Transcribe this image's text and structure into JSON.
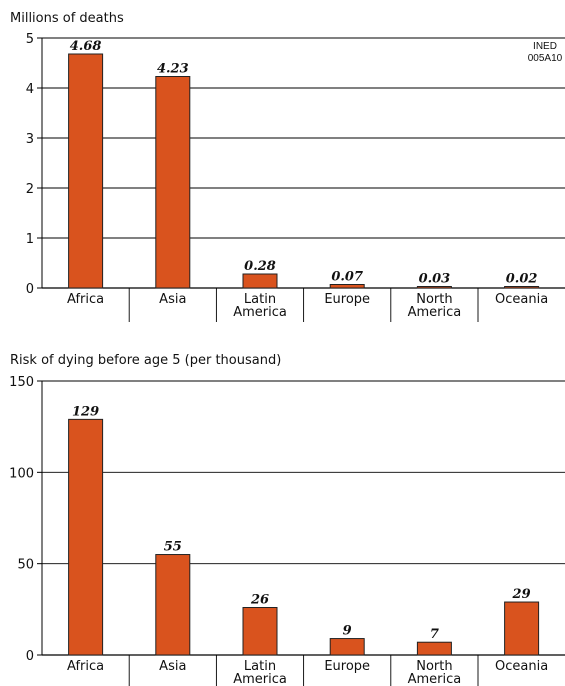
{
  "code_label": {
    "line1": "INED",
    "line2": "005A10"
  },
  "bar_color": "#d9531e",
  "chart_data": [
    {
      "type": "bar",
      "ylabel": "Millions of deaths",
      "categories": [
        [
          "Africa"
        ],
        [
          "Asia"
        ],
        [
          "Latin",
          "America"
        ],
        [
          "Europe"
        ],
        [
          "North",
          "America"
        ],
        [
          "Oceania"
        ]
      ],
      "values": [
        4.68,
        4.23,
        0.28,
        0.07,
        0.03,
        0.02
      ],
      "value_labels": [
        "4.68",
        "4.23",
        "0.28",
        "0.07",
        "0.03",
        "0.02"
      ],
      "ylim": [
        0,
        5
      ],
      "yticks": [
        0,
        1,
        2,
        3,
        4,
        5
      ],
      "grid": true
    },
    {
      "type": "bar",
      "ylabel": "Risk of dying before age 5 (per thousand)",
      "categories": [
        [
          "Africa"
        ],
        [
          "Asia"
        ],
        [
          "Latin",
          "America"
        ],
        [
          "Europe"
        ],
        [
          "North",
          "America"
        ],
        [
          "Oceania"
        ]
      ],
      "values": [
        129,
        55,
        26,
        9,
        7,
        29
      ],
      "value_labels": [
        "129",
        "55",
        "26",
        "9",
        "7",
        "29"
      ],
      "ylim": [
        0,
        150
      ],
      "yticks": [
        0,
        50,
        100,
        150
      ],
      "grid": true
    }
  ]
}
